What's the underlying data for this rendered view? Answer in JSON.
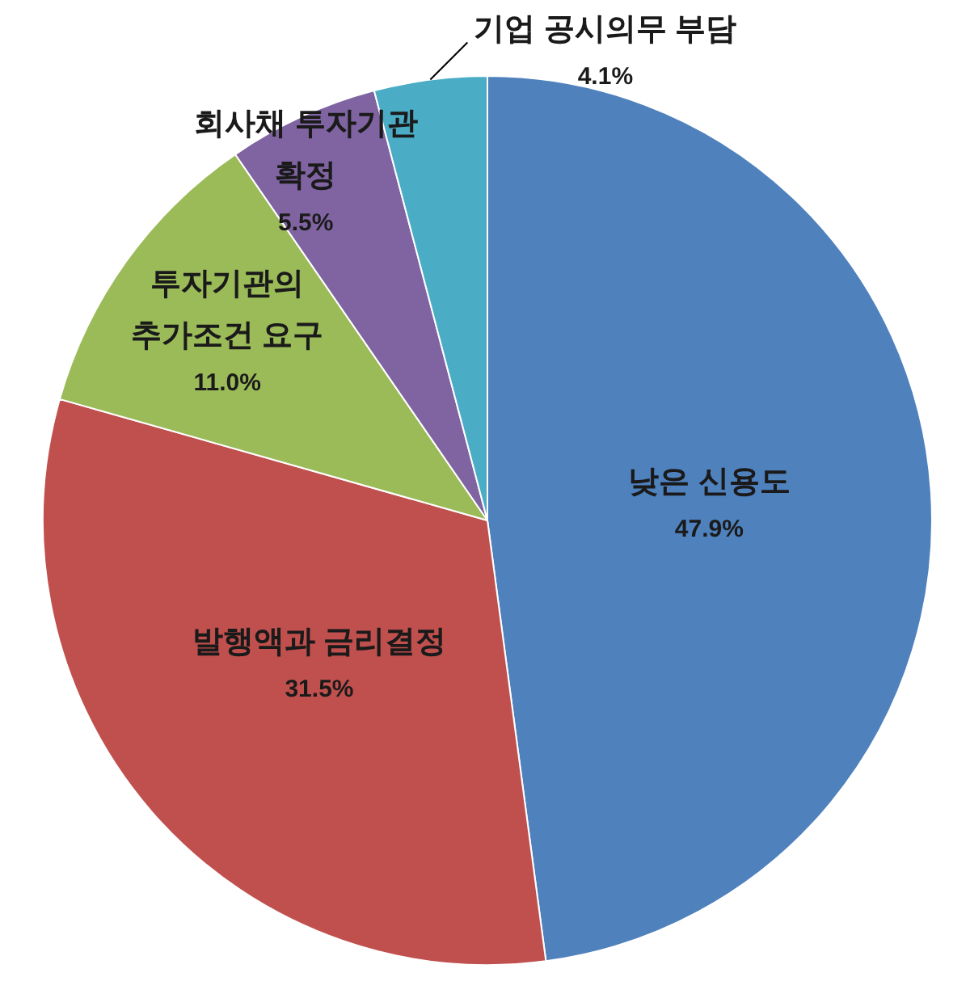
{
  "chart_data": {
    "type": "pie",
    "categories": [
      "낮은 신용도",
      "발행액과 금리결정",
      "투자기관의\n추가조건 요구",
      "회사채 투자기관\n확정",
      "기업 공시의무 부담"
    ],
    "values": [
      47.9,
      31.5,
      11.0,
      5.5,
      4.1
    ],
    "colors": [
      "#4f81bd",
      "#c0504d",
      "#9bbb59",
      "#8064a2",
      "#4bacc6"
    ],
    "value_labels": [
      "47.9%",
      "31.5%",
      "11.0%",
      "5.5%",
      "4.1%"
    ]
  }
}
